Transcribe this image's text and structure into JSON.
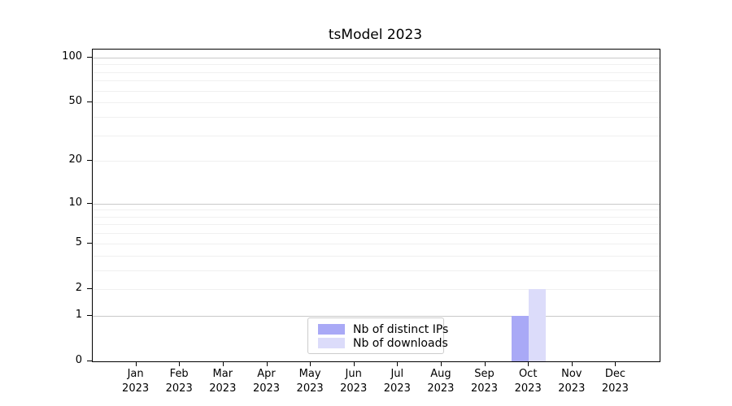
{
  "chart_data": {
    "type": "bar",
    "title": "tsModel 2023",
    "categories": [
      "Jan",
      "Feb",
      "Mar",
      "Apr",
      "May",
      "Jun",
      "Jul",
      "Aug",
      "Sep",
      "Oct",
      "Nov",
      "Dec"
    ],
    "year_label": "2023",
    "series": [
      {
        "name": "Nb of distinct IPs",
        "color": "#a9a9f6",
        "values": [
          0,
          0,
          0,
          0,
          0,
          0,
          0,
          0,
          0,
          1,
          0,
          0
        ]
      },
      {
        "name": "Nb of downloads",
        "color": "#dcdcfa",
        "values": [
          0,
          0,
          0,
          0,
          0,
          0,
          0,
          0,
          0,
          2,
          0,
          0
        ]
      }
    ],
    "y_axis": {
      "scale": "log1p",
      "ticks": [
        0,
        1,
        2,
        5,
        10,
        20,
        50,
        100
      ],
      "major_gridlines": [
        1,
        10,
        100
      ],
      "minor_gridlines": [
        2,
        3,
        4,
        5,
        6,
        7,
        8,
        9,
        20,
        30,
        40,
        50,
        60,
        70,
        80,
        90
      ],
      "ylim": [
        0,
        113
      ]
    },
    "xlabel": "",
    "ylabel": "",
    "legend": {
      "position": "bottom-center",
      "border_color": "#cccccc"
    },
    "colors": {
      "grid_major": "#c9c9c9",
      "grid_minor": "#f0f0f0",
      "axis": "#000000",
      "background": "#ffffff"
    }
  }
}
